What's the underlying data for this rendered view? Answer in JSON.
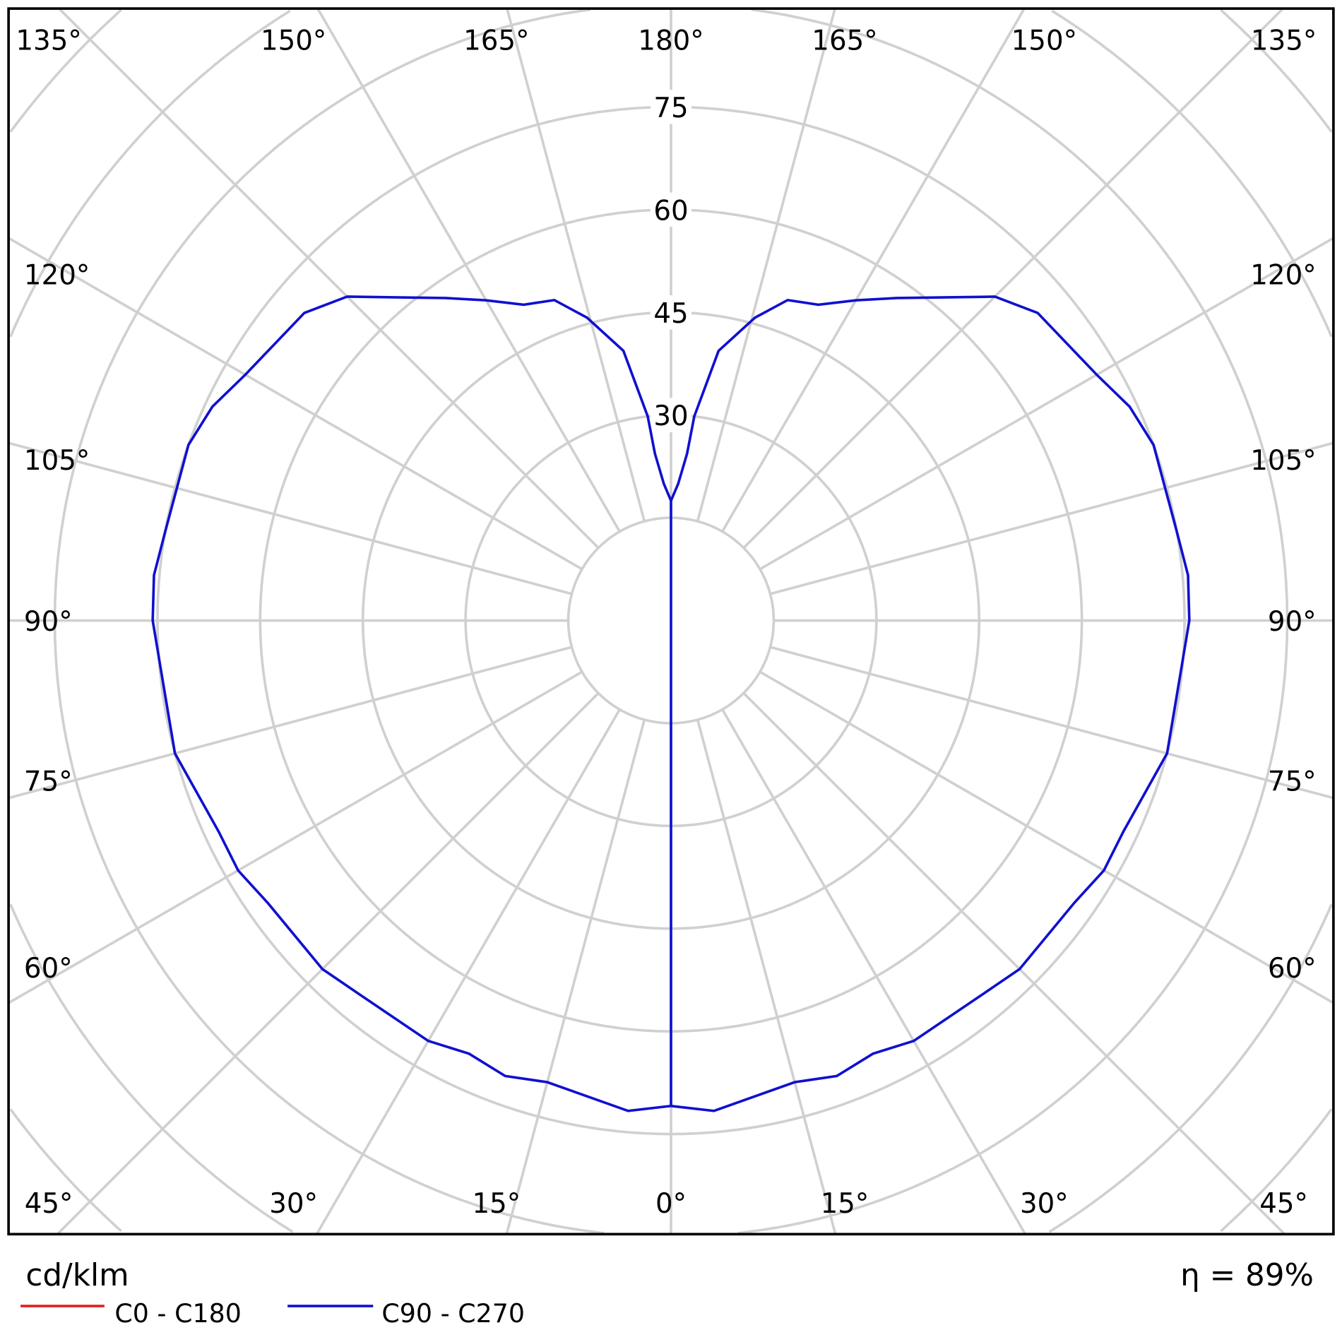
{
  "chart_data": {
    "type": "polar-line",
    "unit_label": "cd/klm",
    "efficiency_label": "η = 89%",
    "radial_ticks": [
      30,
      45,
      60,
      75
    ],
    "radial_ring_values": [
      15,
      30,
      45,
      60,
      75,
      90,
      105,
      120
    ],
    "angle_labels": {
      "top": [
        "135°",
        "150°",
        "165°",
        "180°",
        "165°",
        "150°",
        "135°"
      ],
      "left": [
        "120°",
        "105°",
        "90°",
        "75°",
        "60°"
      ],
      "right": [
        "120°",
        "105°",
        "90°",
        "75°",
        "60°"
      ],
      "bottom": [
        "45°",
        "30°",
        "15°",
        "0°",
        "15°",
        "30°",
        "45°"
      ]
    },
    "grid": true,
    "legend": "bottom-left",
    "series": [
      {
        "name": "C0 - C180",
        "color": "#e02020",
        "angles": [],
        "values": []
      },
      {
        "name": "C90 - C270",
        "color": "#1010d0",
        "symmetric": true,
        "angles": [
          0,
          5,
          15,
          20,
          25,
          30,
          40,
          45,
          55,
          60,
          65,
          75,
          85,
          90,
          95,
          100,
          110,
          115,
          120,
          130,
          135,
          140,
          145,
          150,
          155,
          160,
          164.5,
          170,
          173.5,
          174.5,
          177,
          180
        ],
        "values": [
          70.9,
          71.9,
          69.8,
          70.8,
          69.8,
          70.9,
          71.1,
          72,
          71.9,
          73,
          72.9,
          75,
          74.9,
          75.7,
          75.8,
          75,
          75,
          73.9,
          71.8,
          69.9,
          66.9,
          61.6,
          57.5,
          54,
          50.9,
          49.8,
          45.9,
          40,
          30,
          24.5,
          20,
          17.5
        ]
      }
    ]
  }
}
